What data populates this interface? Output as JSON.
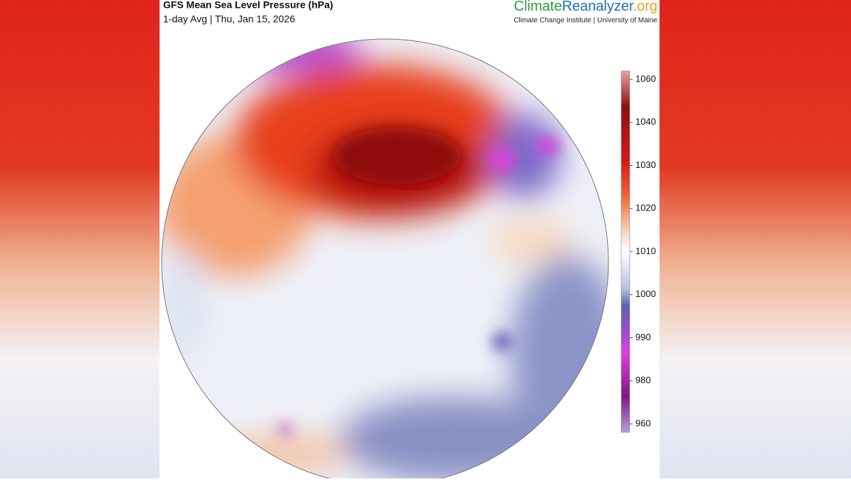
{
  "header": {
    "title": "GFS Mean Sea Level Pressure (hPa)",
    "subtitle": "1-day Avg | Thu, Jan 15, 2026",
    "brand": {
      "part1": "Climate",
      "part2": "Reanalyzer",
      "part3": ".org"
    },
    "credit": "Climate Change Institute | University of Maine"
  },
  "colorbar": {
    "ticks": [
      1060,
      1040,
      1030,
      1020,
      1010,
      1000,
      990,
      980,
      960
    ]
  }
}
